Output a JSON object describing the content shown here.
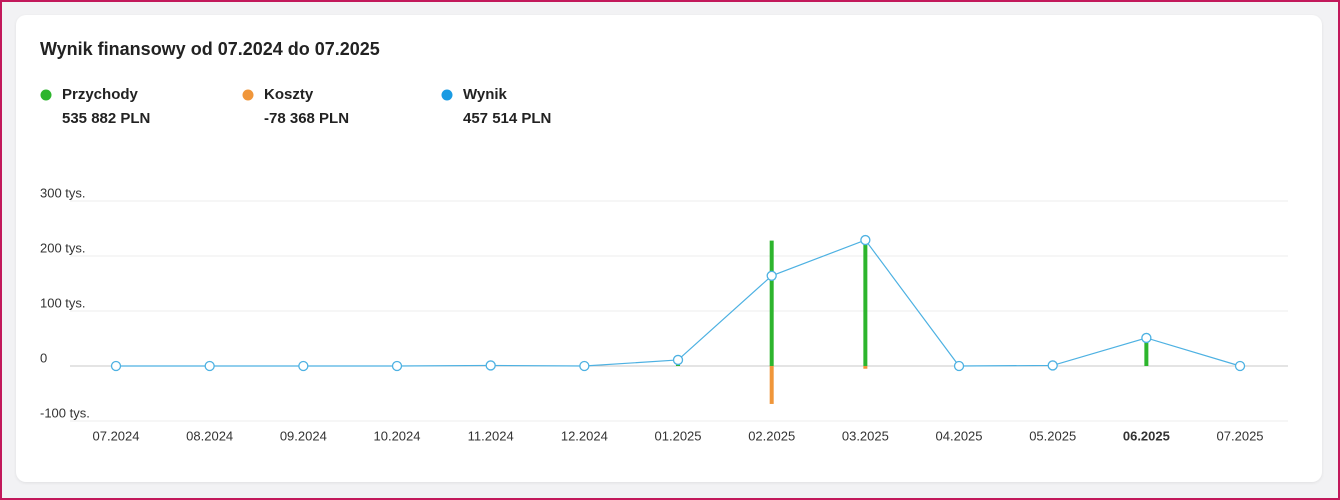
{
  "chart_data": {
    "type": "bar",
    "title": "Wynik finansowy od 07.2024 do 07.2025",
    "categories": [
      "07.2024",
      "08.2024",
      "09.2024",
      "10.2024",
      "11.2024",
      "12.2024",
      "01.2025",
      "02.2025",
      "03.2025",
      "04.2025",
      "05.2025",
      "06.2025",
      "07.2025"
    ],
    "highlight_index": 11,
    "series": [
      {
        "name": "Przychody",
        "total": "535 882 PLN",
        "type": "bar",
        "color": "#2db52d",
        "values": [
          0,
          0,
          0,
          0,
          0,
          0,
          5,
          228,
          233,
          0,
          0,
          50,
          0
        ]
      },
      {
        "name": "Koszty",
        "total": "-78 368 PLN",
        "type": "bar",
        "color": "#f0963a",
        "values": [
          0,
          0,
          0,
          0,
          0,
          0,
          0,
          -69,
          -5,
          0,
          0,
          0,
          0
        ]
      },
      {
        "name": "Wynik",
        "total": "457 514 PLN",
        "type": "line",
        "color": "#4db1e2",
        "legend_color": "#1a9be3",
        "values": [
          0,
          0,
          0,
          0,
          1,
          0,
          11,
          164,
          229,
          0,
          1,
          51,
          0
        ]
      }
    ],
    "ylim": [
      -100,
      300
    ],
    "yticks": [
      {
        "value": 300,
        "label": "300 tys."
      },
      {
        "value": 200,
        "label": "200 tys."
      },
      {
        "value": 100,
        "label": "100 tys."
      },
      0,
      {
        "value": -100,
        "label": "-100 tys."
      }
    ],
    "grid": true
  }
}
